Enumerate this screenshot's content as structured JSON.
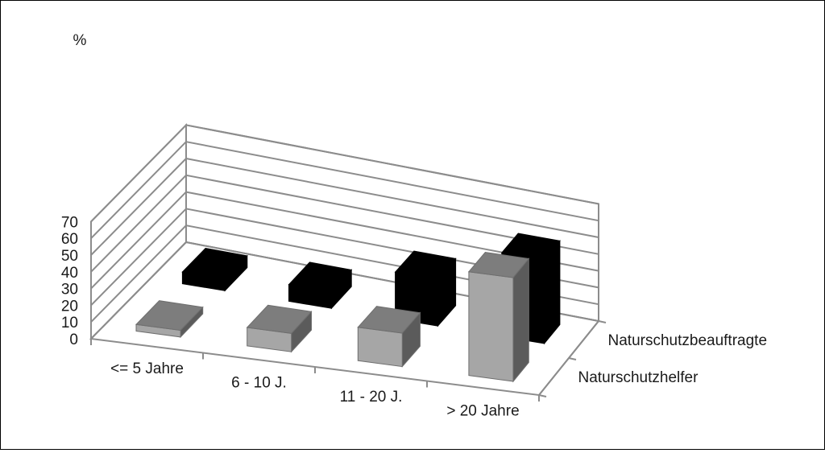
{
  "chart_data": {
    "type": "bar",
    "style": "3d-column",
    "y_unit_label": "%",
    "ylim": [
      0,
      70
    ],
    "yticks": [
      0,
      10,
      20,
      30,
      40,
      50,
      60,
      70
    ],
    "grid": true,
    "categories": [
      "<= 5 Jahre",
      "6 - 10 J.",
      "11 - 20 J.",
      "> 20 Jahre"
    ],
    "series": [
      {
        "name": "Naturschutzhelfer",
        "color": "#a6a6a6",
        "values": [
          4,
          11,
          20,
          62
        ]
      },
      {
        "name": "Naturschutzbeauftragte",
        "color": "#000000",
        "values": [
          7,
          10,
          28,
          50
        ]
      }
    ]
  }
}
